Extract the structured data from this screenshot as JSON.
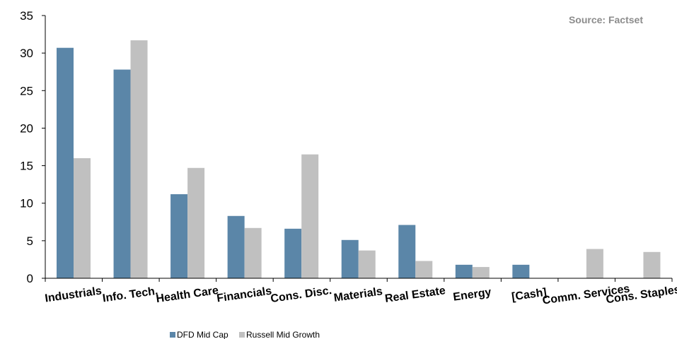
{
  "chart_data": {
    "type": "bar",
    "source": "Source: Factset",
    "categories": [
      "Industrials",
      "Info. Tech.",
      "Health Care",
      "Financials",
      "Cons. Disc.",
      "Materials",
      "Real Estate",
      "Energy",
      "[Cash]",
      "Comm. Services",
      "Cons. Staples"
    ],
    "series": [
      {
        "name": "DFD Mid Cap",
        "color": "#5b86a8",
        "values": [
          30.7,
          27.8,
          11.2,
          8.3,
          6.6,
          5.1,
          7.1,
          1.8,
          1.8,
          0,
          0
        ]
      },
      {
        "name": "Russell Mid Growth",
        "color": "#c0c0c0",
        "values": [
          16.0,
          31.7,
          14.7,
          6.7,
          16.5,
          3.7,
          2.3,
          1.5,
          0,
          3.9,
          3.5
        ]
      }
    ],
    "yticks": [
      0,
      5,
      10,
      15,
      20,
      25,
      30,
      35
    ],
    "ylim": [
      0,
      35
    ],
    "grid": false,
    "legend_position": "bottom"
  }
}
